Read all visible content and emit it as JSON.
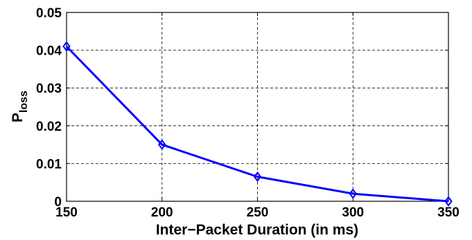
{
  "chart_data": {
    "type": "line",
    "title": "",
    "xlabel": "Inter−Packet Duration (in ms)",
    "ylabel": {
      "main": "P",
      "sub": "loss"
    },
    "x": [
      150,
      200,
      250,
      300,
      350
    ],
    "series": [
      {
        "values": [
          0.041,
          0.015,
          0.0065,
          0.002,
          0.0
        ],
        "color": "#0000ff",
        "marker": "diamond"
      }
    ],
    "xlim": [
      150,
      350
    ],
    "ylim": [
      0,
      0.05
    ],
    "xticks": [
      "150",
      "200",
      "250",
      "300",
      "350"
    ],
    "yticks": [
      "0",
      "0.01",
      "0.02",
      "0.03",
      "0.04",
      "0.05"
    ],
    "grid": true
  }
}
